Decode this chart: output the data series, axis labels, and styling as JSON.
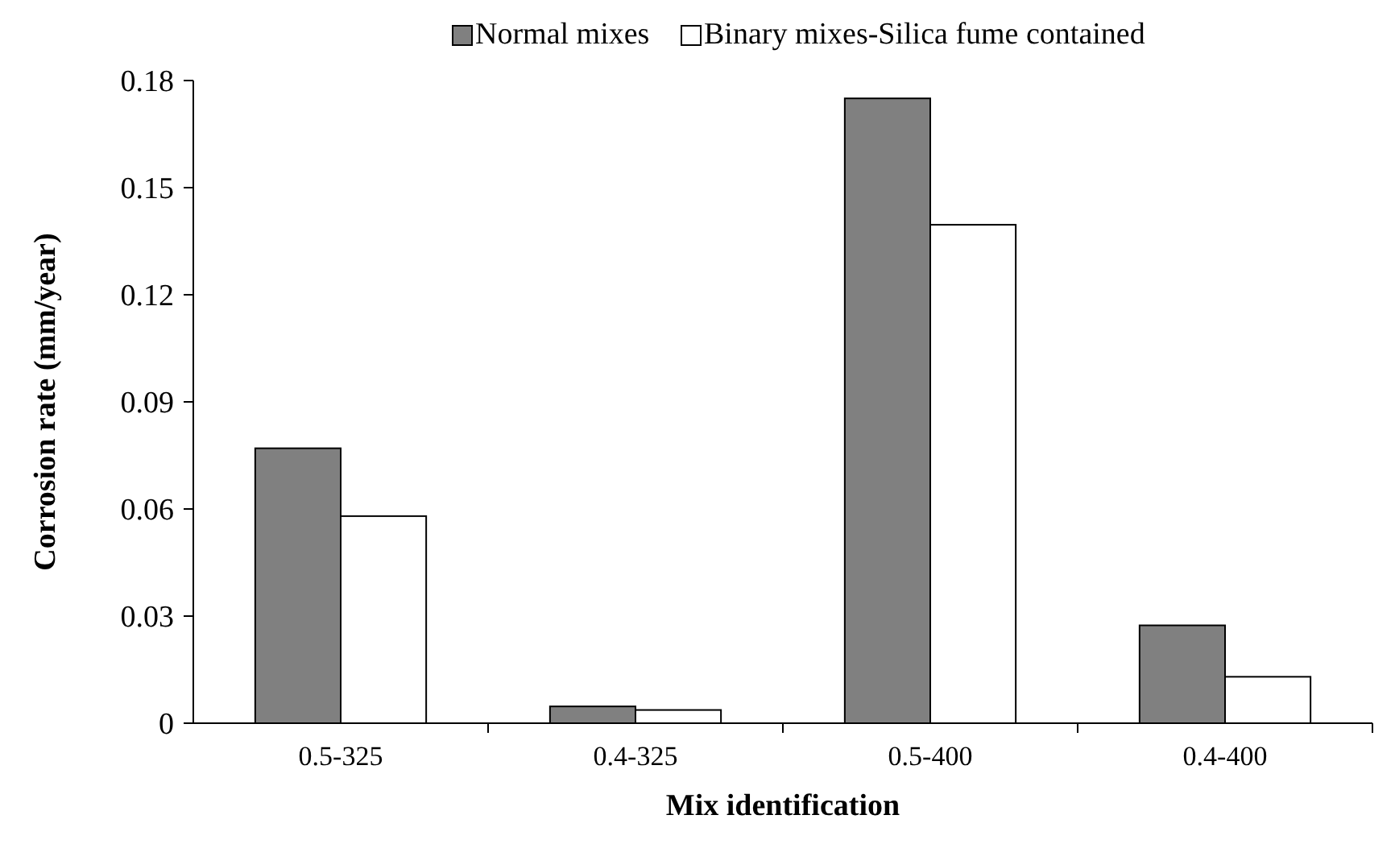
{
  "chart_data": {
    "type": "bar",
    "xlabel": "Mix identification",
    "ylabel": "Corrosion rate (mm/year)",
    "categories": [
      "0.5-325",
      "0.4-325",
      "0.5-400",
      "0.4-400"
    ],
    "series": [
      {
        "name": "Normal mixes",
        "color": "#808080",
        "values": [
          0.077,
          0.0047,
          0.175,
          0.0274
        ]
      },
      {
        "name": "Binary mixes-Silica fume contained",
        "color": "#ffffff",
        "values": [
          0.058,
          0.0037,
          0.1396,
          0.013
        ]
      }
    ],
    "ylim": [
      0,
      0.18
    ],
    "yticks": [
      0,
      0.03,
      0.06,
      0.09,
      0.12,
      0.15,
      0.18
    ],
    "grid": false,
    "legend": "top"
  }
}
